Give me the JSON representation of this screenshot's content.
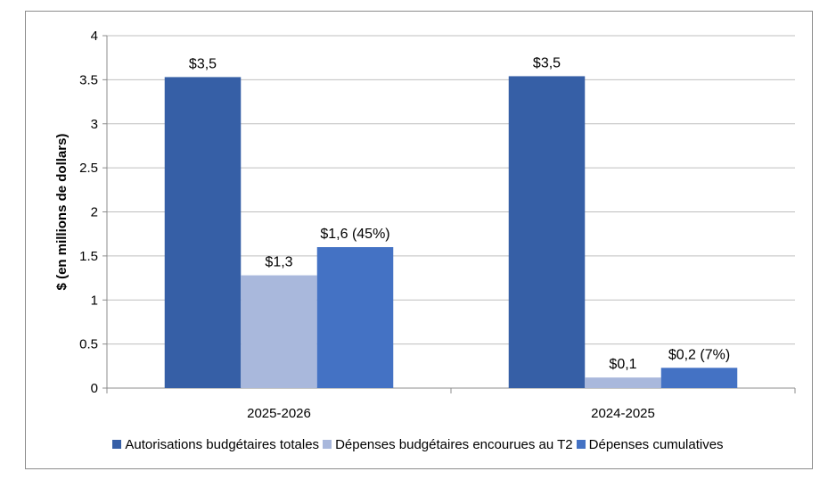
{
  "chart_data": {
    "type": "bar",
    "title": "",
    "xlabel": "",
    "ylabel": "$ (en millions de dollars)",
    "ylim": [
      0,
      4
    ],
    "yticks": [
      0,
      0.5,
      1,
      1.5,
      2,
      2.5,
      3,
      3.5,
      4
    ],
    "ytick_labels": [
      "0",
      "0.5",
      "1",
      "1.5",
      "2",
      "2.5",
      "3",
      "3.5",
      "4"
    ],
    "grid": true,
    "legend_position": "bottom",
    "categories": [
      "2025-2026",
      "2024-2025"
    ],
    "series": [
      {
        "name": "Autorisations budgétaires totales",
        "color": "#365FA6",
        "values": [
          3.53,
          3.54
        ],
        "labels": [
          "$3,5",
          "$3,5"
        ]
      },
      {
        "name": "Dépenses budgétaires encourues au T2",
        "color": "#A9B8DC",
        "values": [
          1.28,
          0.12
        ],
        "labels": [
          "$1,3",
          "$0,1"
        ]
      },
      {
        "name": "Dépenses cumulatives",
        "color": "#4472C4",
        "values": [
          1.6,
          0.23
        ],
        "labels": [
          "$1,6 (45%)",
          "$0,2 (7%)"
        ]
      }
    ]
  }
}
